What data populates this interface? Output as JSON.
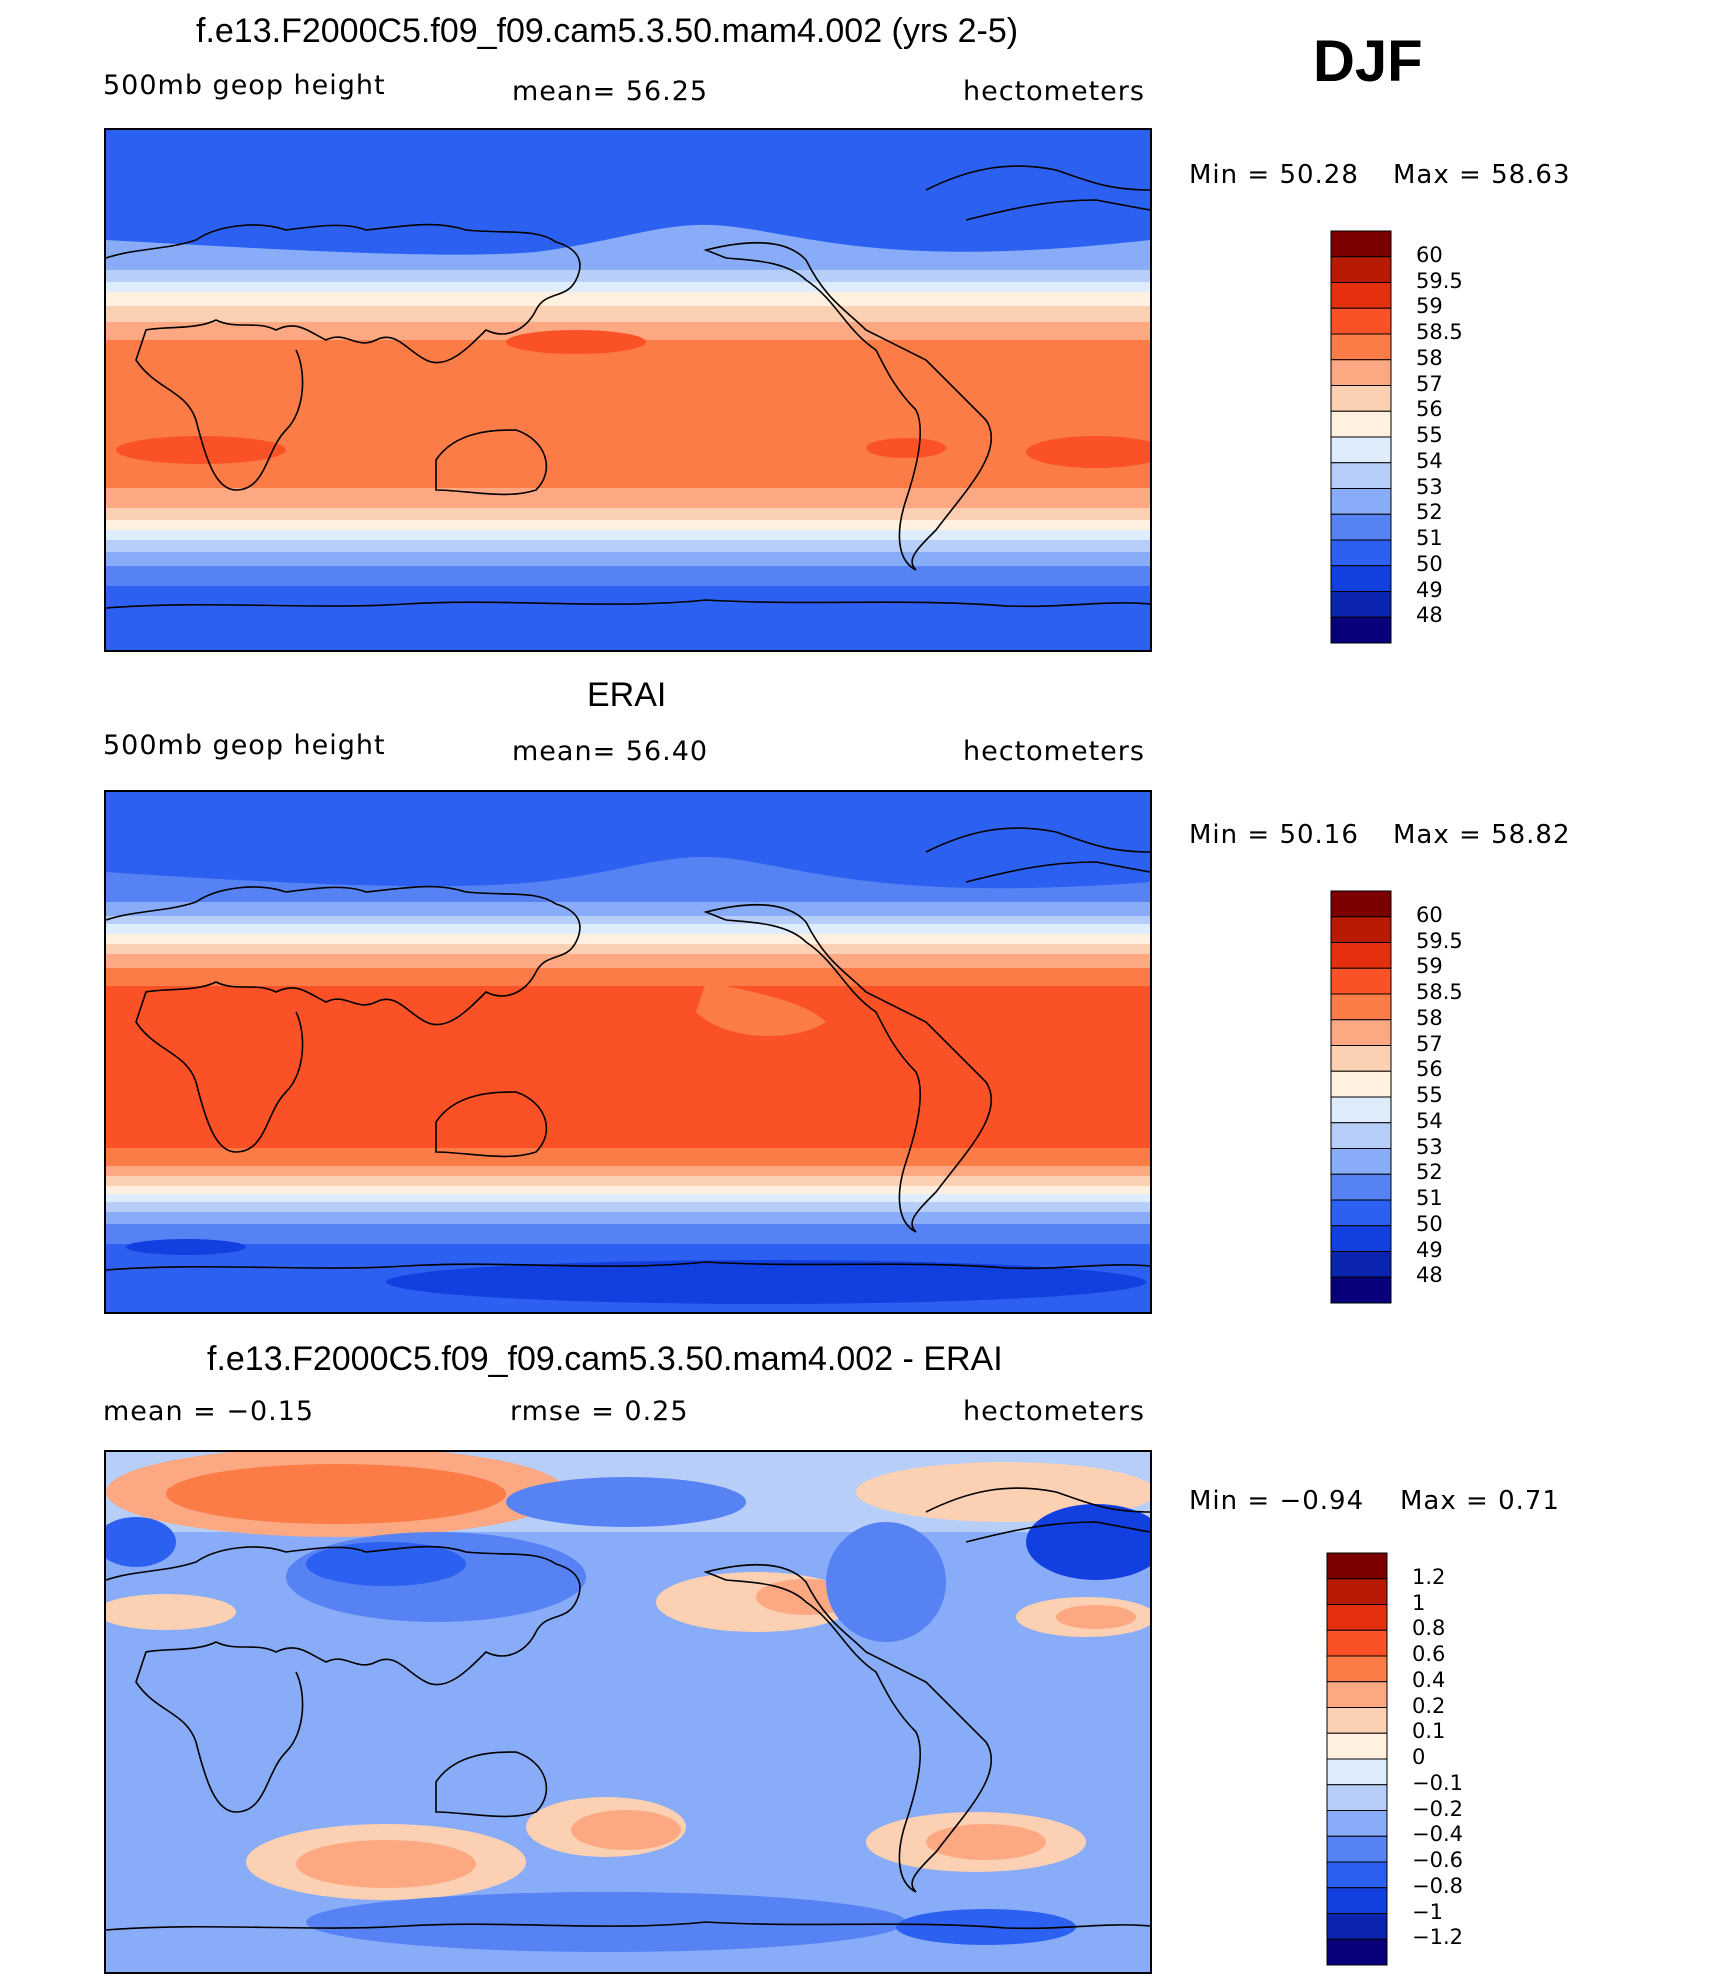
{
  "season": "DJF",
  "palette_colors": [
    "#08007a",
    "#0a24b0",
    "#1240e0",
    "#2c60f0",
    "#5682f4",
    "#88acf8",
    "#b6cef8",
    "#deecfc",
    "#fff0e0",
    "#fcd0b2",
    "#fca882",
    "#fc7c48",
    "#fa5226",
    "#e4300e",
    "#b81a04",
    "#7c0000"
  ],
  "panels": [
    {
      "title": "f.e13.F2000C5.f09_f09.cam5.3.50.mam4.002 (yrs 2-5)",
      "left_label": "500mb  geop  height",
      "center_label": "mean=   56.25",
      "units": "hectometers",
      "min_label": "Min  =    50.28",
      "max_label": "Max  =    58.63"
    },
    {
      "title": "ERAI",
      "left_label": "500mb  geop  height",
      "center_label": "mean=   56.40",
      "units": "hectometers",
      "min_label": "Min  =    50.16",
      "max_label": "Max  =    58.82"
    },
    {
      "title": "f.e13.F2000C5.f09_f09.cam5.3.50.mam4.002 - ERAI",
      "left_label": "mean  =    −0.15",
      "center_label": "rmse  =     0.25",
      "units": "hectometers",
      "min_label": "Min  =    −0.94",
      "max_label": "Max  =      0.71"
    }
  ],
  "chart_data": [
    {
      "type": "heatmap",
      "title": "f.e13.F2000C5.f09_f09.cam5.3.50.mam4.002 (yrs 2-5)",
      "variable": "500mb geop height",
      "units": "hectometers",
      "mean": 56.25,
      "min": 50.28,
      "max": 58.63,
      "colorbar_levels": [
        "60",
        "59.5",
        "59",
        "58.5",
        "58",
        "57",
        "56",
        "55",
        "54",
        "53",
        "52",
        "51",
        "50",
        "49",
        "48"
      ]
    },
    {
      "type": "heatmap",
      "title": "ERAI",
      "variable": "500mb geop height",
      "units": "hectometers",
      "mean": 56.4,
      "min": 50.16,
      "max": 58.82,
      "colorbar_levels": [
        "60",
        "59.5",
        "59",
        "58.5",
        "58",
        "57",
        "56",
        "55",
        "54",
        "53",
        "52",
        "51",
        "50",
        "49",
        "48"
      ]
    },
    {
      "type": "heatmap",
      "title": "f.e13.F2000C5.f09_f09.cam5.3.50.mam4.002 - ERAI",
      "units": "hectometers",
      "mean": -0.15,
      "rmse": 0.25,
      "min": -0.94,
      "max": 0.71,
      "colorbar_levels": [
        "1.2",
        "1",
        "0.8",
        "0.6",
        "0.4",
        "0.2",
        "0.1",
        "0",
        "−0.1",
        "−0.2",
        "−0.4",
        "−0.6",
        "−0.8",
        "−1",
        "−1.2"
      ]
    }
  ]
}
